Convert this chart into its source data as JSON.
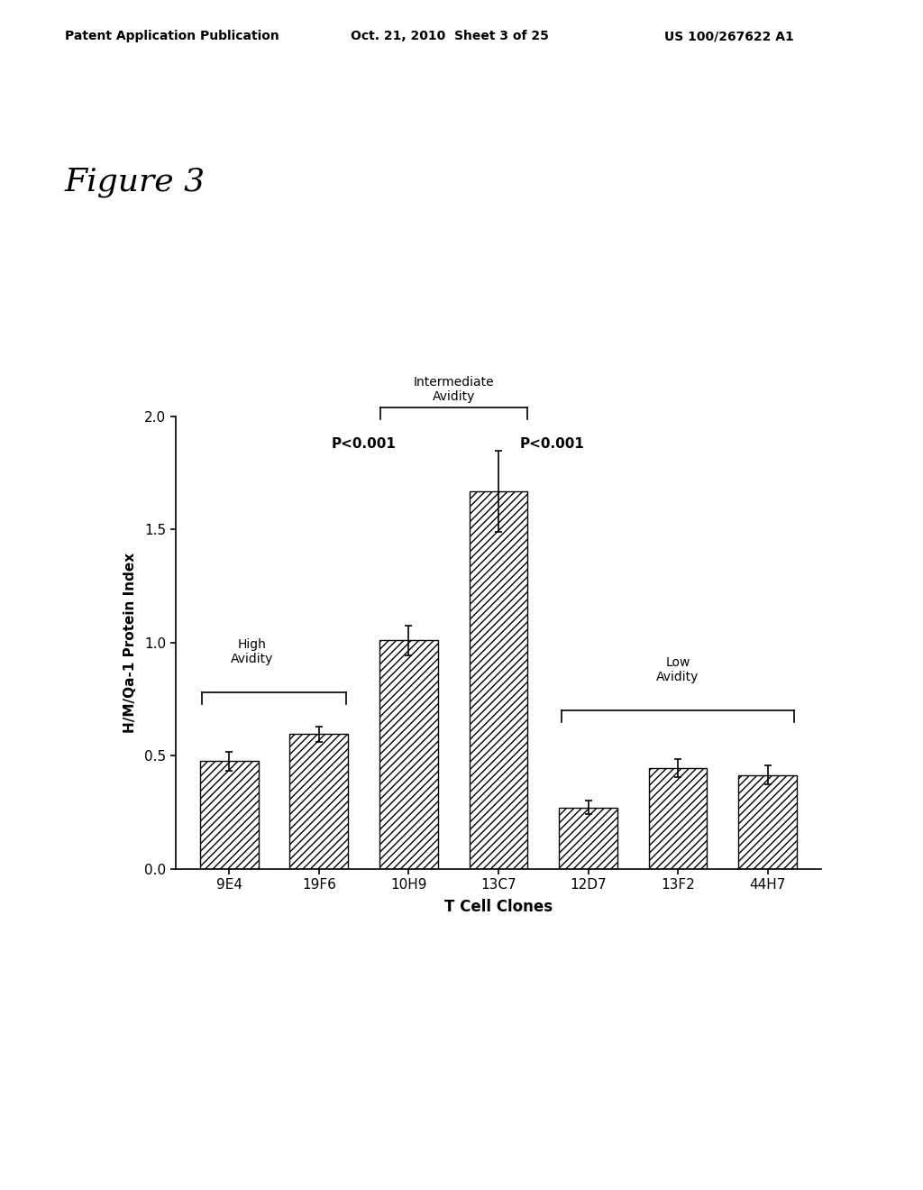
{
  "header_left": "Patent Application Publication",
  "header_center": "Oct. 21, 2010  Sheet 3 of 25",
  "header_right": "US 100/267622 A1",
  "figure_label": "Figure 3",
  "categories": [
    "9E4",
    "19F6",
    "10H9",
    "13C7",
    "12D7",
    "13F2",
    "44H7"
  ],
  "values": [
    0.475,
    0.595,
    1.01,
    1.67,
    0.27,
    0.445,
    0.415
  ],
  "errors": [
    0.04,
    0.035,
    0.065,
    0.18,
    0.03,
    0.04,
    0.04
  ],
  "xlabel": "T Cell Clones",
  "ylabel": "H/M/Qa-1 Protein Index",
  "ylim": [
    0.0,
    2.0
  ],
  "yticks": [
    0.0,
    0.5,
    1.0,
    1.5,
    2.0
  ],
  "hatch_pattern": "////",
  "background_color": "#ffffff"
}
